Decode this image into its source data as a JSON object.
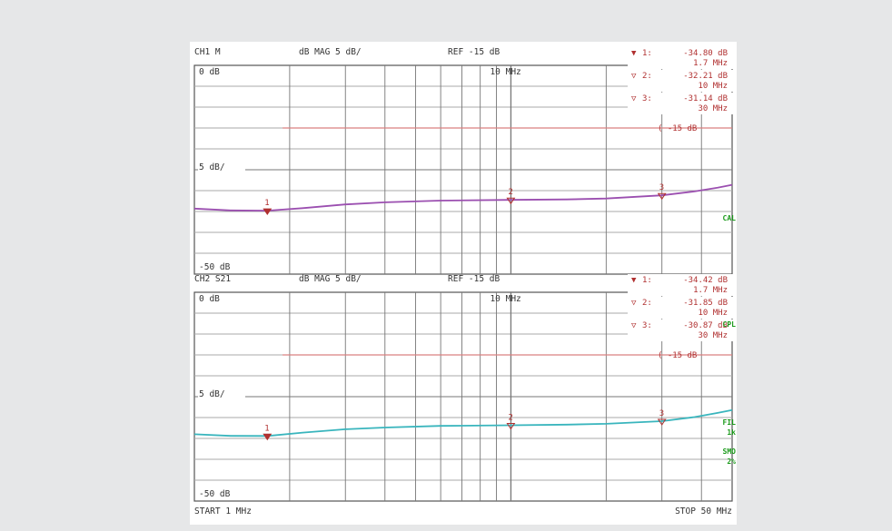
{
  "chart_data": [
    {
      "type": "line",
      "channel_label": "CH1 M",
      "format_label": "dB  MAG 5 dB/",
      "ref_label": "REF -15 dB",
      "top_label": "0 dB",
      "scale_label": "5 dB/",
      "bottom_label": "-50 dB",
      "freq_label": "10 MHz",
      "ref_line_label": "( -15 dB",
      "ref_value": -15,
      "ylim": [
        -50,
        0
      ],
      "xlim_mhz": [
        1,
        50
      ],
      "x_scale": "log",
      "trace_color": "#9b4fb0",
      "ref_line_color": "#d98080",
      "side_labels": [
        "CAL"
      ],
      "markers": [
        {
          "id": "1",
          "symbol": "▼",
          "label": "1:",
          "value": "-34.80 dB",
          "freq": "1.7 MHz",
          "x_mhz": 1.7,
          "y_db": -34.8
        },
        {
          "id": "2",
          "symbol": "▽",
          "label": "2:",
          "value": "-32.21 dB",
          "freq": "10 MHz",
          "x_mhz": 10,
          "y_db": -32.21
        },
        {
          "id": "3",
          "symbol": "▽",
          "label": "3:",
          "value": "-31.14 dB",
          "freq": "30 MHz",
          "x_mhz": 30,
          "y_db": -31.14
        }
      ],
      "trace": [
        [
          1,
          -34.3
        ],
        [
          1.3,
          -34.75
        ],
        [
          1.7,
          -34.8
        ],
        [
          2.2,
          -34.2
        ],
        [
          3,
          -33.3
        ],
        [
          4,
          -32.8
        ],
        [
          6,
          -32.4
        ],
        [
          10,
          -32.21
        ],
        [
          15,
          -32.1
        ],
        [
          20,
          -31.9
        ],
        [
          30,
          -31.14
        ],
        [
          38,
          -30.2
        ],
        [
          45,
          -29.3
        ],
        [
          50,
          -28.6
        ]
      ]
    },
    {
      "type": "line",
      "channel_label": "CH2 S21",
      "format_label": "dB  MAG 5 dB/",
      "ref_label": "REF -15 dB",
      "top_label": "0 dB",
      "scale_label": "5 dB/",
      "bottom_label": "-50 dB",
      "freq_label": "10 MHz",
      "ref_line_label": "( -15 dB",
      "ref_value": -15,
      "ylim": [
        -50,
        0
      ],
      "xlim_mhz": [
        1,
        50
      ],
      "x_scale": "log",
      "trace_color": "#39b5bd",
      "ref_line_color": "#d98080",
      "side_labels": [
        "CPL",
        "FIL",
        "1k",
        "SMO",
        "2%"
      ],
      "markers": [
        {
          "id": "1",
          "symbol": "▼",
          "label": "1:",
          "value": "-34.42 dB",
          "freq": "1.7 MHz",
          "x_mhz": 1.7,
          "y_db": -34.42
        },
        {
          "id": "2",
          "symbol": "▽",
          "label": "2:",
          "value": "-31.85 dB",
          "freq": "10 MHz",
          "x_mhz": 10,
          "y_db": -31.85
        },
        {
          "id": "3",
          "symbol": "▽",
          "label": "3:",
          "value": "-30.87 dB",
          "freq": "30 MHz",
          "x_mhz": 30,
          "y_db": -30.87
        }
      ],
      "trace": [
        [
          1,
          -34.0
        ],
        [
          1.3,
          -34.4
        ],
        [
          1.7,
          -34.42
        ],
        [
          2.2,
          -33.6
        ],
        [
          3,
          -32.8
        ],
        [
          4,
          -32.4
        ],
        [
          6,
          -32.0
        ],
        [
          10,
          -31.85
        ],
        [
          15,
          -31.7
        ],
        [
          20,
          -31.5
        ],
        [
          30,
          -30.87
        ],
        [
          38,
          -29.9
        ],
        [
          45,
          -28.9
        ],
        [
          50,
          -28.2
        ]
      ]
    }
  ],
  "footer": {
    "start": "START  1 MHz",
    "stop": "STOP 50 MHz"
  }
}
